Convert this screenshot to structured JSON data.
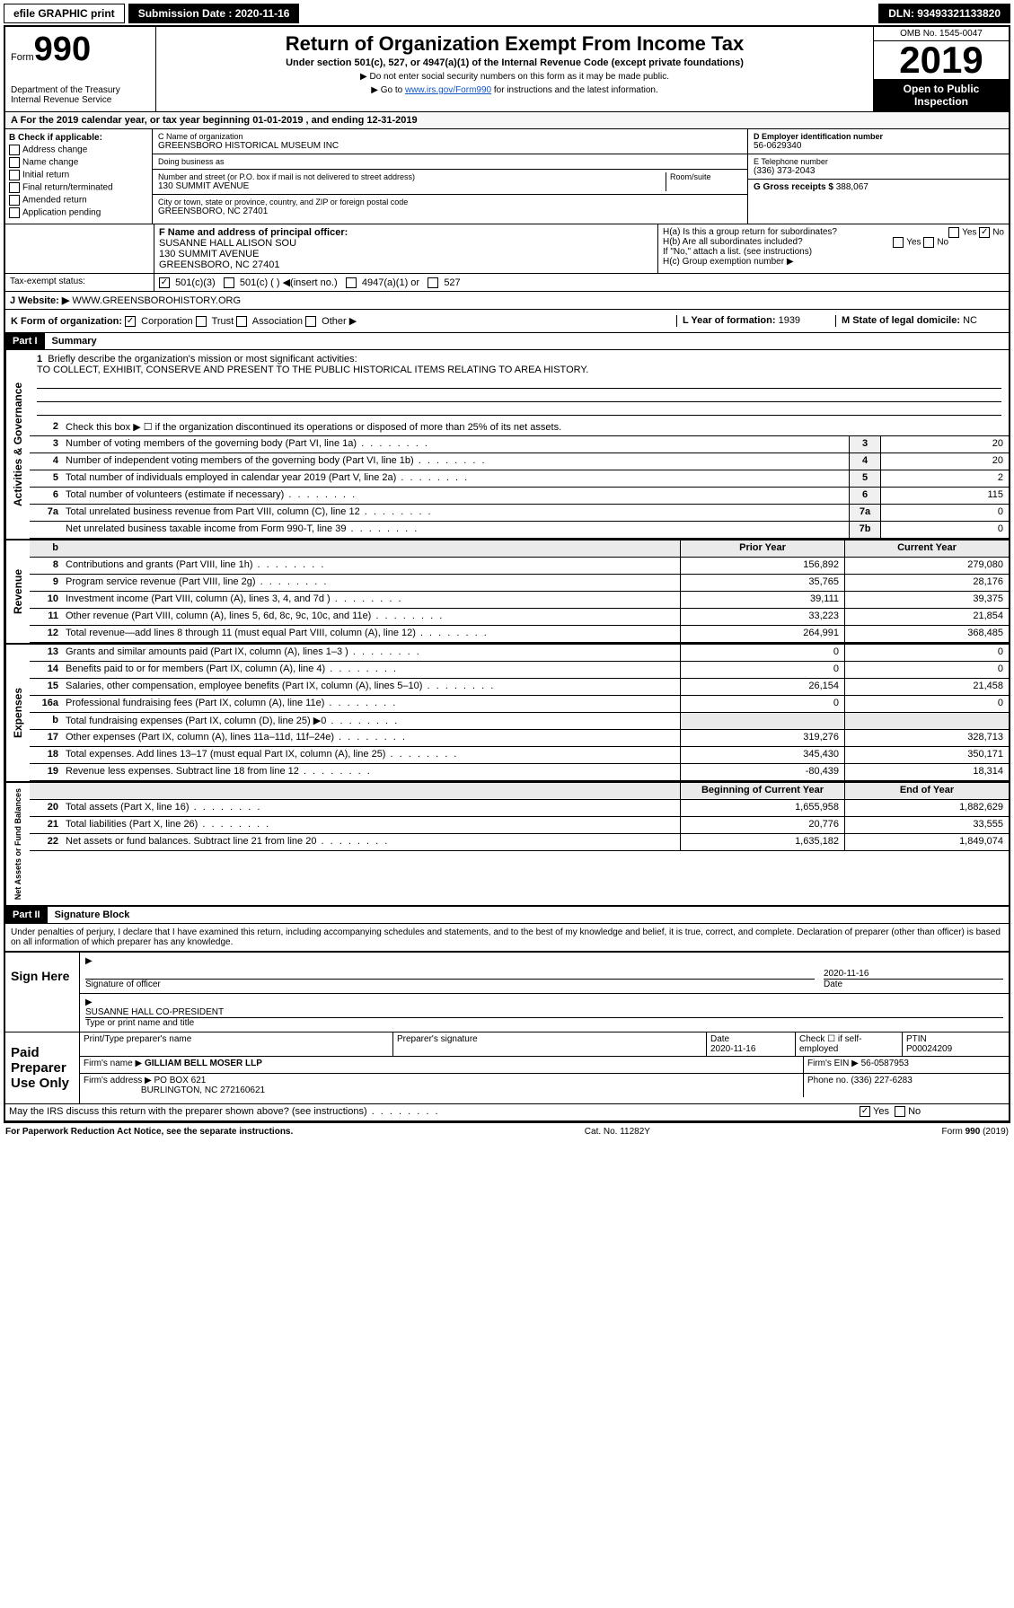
{
  "header": {
    "efile": "efile GRAPHIC print",
    "submission_label": "Submission Date : 2020-11-16",
    "dln": "DLN: 93493321133820"
  },
  "form": {
    "form_label": "Form",
    "form_num": "990",
    "title": "Return of Organization Exempt From Income Tax",
    "subtitle": "Under section 501(c), 527, or 4947(a)(1) of the Internal Revenue Code (except private foundations)",
    "instr1": "▶ Do not enter social security numbers on this form as it may be made public.",
    "instr2_pre": "▶ Go to ",
    "instr2_link": "www.irs.gov/Form990",
    "instr2_post": " for instructions and the latest information.",
    "dept": "Department of the Treasury\nInternal Revenue Service",
    "omb": "OMB No. 1545-0047",
    "year": "2019",
    "open": "Open to Public Inspection"
  },
  "period": "A For the 2019 calendar year, or tax year beginning 01-01-2019    , and ending 12-31-2019",
  "box_b": {
    "label": "B Check if applicable:",
    "opts": [
      "Address change",
      "Name change",
      "Initial return",
      "Final return/terminated",
      "Amended return",
      "Application pending"
    ]
  },
  "box_c": {
    "name_label": "C Name of organization",
    "name": "GREENSBORO HISTORICAL MUSEUM INC",
    "dba_label": "Doing business as",
    "street_label": "Number and street (or P.O. box if mail is not delivered to street address)",
    "room_label": "Room/suite",
    "street": "130 SUMMIT AVENUE",
    "city_label": "City or town, state or province, country, and ZIP or foreign postal code",
    "city": "GREENSBORO, NC  27401"
  },
  "box_d": {
    "ein_label": "D Employer identification number",
    "ein": "56-0629340",
    "phone_label": "E Telephone number",
    "phone": "(336) 373-2043",
    "gross_label": "G Gross receipts $",
    "gross": "388,067"
  },
  "box_f": {
    "label": "F  Name and address of principal officer:",
    "name": "SUSANNE HALL ALISON SOU",
    "addr1": "130 SUMMIT AVENUE",
    "addr2": "GREENSBORO, NC  27401"
  },
  "box_h": {
    "a": "H(a)  Is this a group return for subordinates?",
    "b": "H(b)  Are all subordinates included?",
    "note": "If \"No,\" attach a list. (see instructions)",
    "c": "H(c)  Group exemption number ▶"
  },
  "tax_status": {
    "label": "Tax-exempt status:",
    "o1": "501(c)(3)",
    "o2": "501(c) (   ) ◀(insert no.)",
    "o3": "4947(a)(1) or",
    "o4": "527"
  },
  "website": {
    "label": "J    Website: ▶",
    "val": "WWW.GREENSBOROHISTORY.ORG"
  },
  "k": {
    "label": "K Form of organization:",
    "o1": "Corporation",
    "o2": "Trust",
    "o3": "Association",
    "o4": "Other ▶"
  },
  "l": {
    "label": "L Year of formation:",
    "val": "1939"
  },
  "m": {
    "label": "M State of legal domicile:",
    "val": "NC"
  },
  "part1": {
    "header": "Part I",
    "title": "Summary",
    "q1": "Briefly describe the organization's mission or most significant activities:",
    "mission": "TO COLLECT, EXHIBIT, CONSERVE AND PRESENT TO THE PUBLIC HISTORICAL ITEMS RELATING TO AREA HISTORY.",
    "q2": "Check this box ▶ ☐  if the organization discontinued its operations or disposed of more than 25% of its net assets.",
    "lines_gov": [
      {
        "n": "3",
        "d": "Number of voting members of the governing body (Part VI, line 1a)",
        "box": "3",
        "v": "20"
      },
      {
        "n": "4",
        "d": "Number of independent voting members of the governing body (Part VI, line 1b)",
        "box": "4",
        "v": "20"
      },
      {
        "n": "5",
        "d": "Total number of individuals employed in calendar year 2019 (Part V, line 2a)",
        "box": "5",
        "v": "2"
      },
      {
        "n": "6",
        "d": "Total number of volunteers (estimate if necessary)",
        "box": "6",
        "v": "115"
      },
      {
        "n": "7a",
        "d": "Total unrelated business revenue from Part VIII, column (C), line 12",
        "box": "7a",
        "v": "0"
      },
      {
        "n": "",
        "d": "Net unrelated business taxable income from Form 990-T, line 39",
        "box": "7b",
        "v": "0"
      }
    ],
    "col_prior": "Prior Year",
    "col_current": "Current Year",
    "lines_rev": [
      {
        "n": "8",
        "d": "Contributions and grants (Part VIII, line 1h)",
        "p": "156,892",
        "c": "279,080"
      },
      {
        "n": "9",
        "d": "Program service revenue (Part VIII, line 2g)",
        "p": "35,765",
        "c": "28,176"
      },
      {
        "n": "10",
        "d": "Investment income (Part VIII, column (A), lines 3, 4, and 7d )",
        "p": "39,111",
        "c": "39,375"
      },
      {
        "n": "11",
        "d": "Other revenue (Part VIII, column (A), lines 5, 6d, 8c, 9c, 10c, and 11e)",
        "p": "33,223",
        "c": "21,854"
      },
      {
        "n": "12",
        "d": "Total revenue—add lines 8 through 11 (must equal Part VIII, column (A), line 12)",
        "p": "264,991",
        "c": "368,485"
      }
    ],
    "lines_exp": [
      {
        "n": "13",
        "d": "Grants and similar amounts paid (Part IX, column (A), lines 1–3 )",
        "p": "0",
        "c": "0"
      },
      {
        "n": "14",
        "d": "Benefits paid to or for members (Part IX, column (A), line 4)",
        "p": "0",
        "c": "0"
      },
      {
        "n": "15",
        "d": "Salaries, other compensation, employee benefits (Part IX, column (A), lines 5–10)",
        "p": "26,154",
        "c": "21,458"
      },
      {
        "n": "16a",
        "d": "Professional fundraising fees (Part IX, column (A), line 11e)",
        "p": "0",
        "c": "0"
      },
      {
        "n": "b",
        "d": "Total fundraising expenses (Part IX, column (D), line 25) ▶0",
        "p": "",
        "c": ""
      },
      {
        "n": "17",
        "d": "Other expenses (Part IX, column (A), lines 11a–11d, 11f–24e)",
        "p": "319,276",
        "c": "328,713"
      },
      {
        "n": "18",
        "d": "Total expenses. Add lines 13–17 (must equal Part IX, column (A), line 25)",
        "p": "345,430",
        "c": "350,171"
      },
      {
        "n": "19",
        "d": "Revenue less expenses. Subtract line 18 from line 12",
        "p": "-80,439",
        "c": "18,314"
      }
    ],
    "col_begin": "Beginning of Current Year",
    "col_end": "End of Year",
    "lines_net": [
      {
        "n": "20",
        "d": "Total assets (Part X, line 16)",
        "p": "1,655,958",
        "c": "1,882,629"
      },
      {
        "n": "21",
        "d": "Total liabilities (Part X, line 26)",
        "p": "20,776",
        "c": "33,555"
      },
      {
        "n": "22",
        "d": "Net assets or fund balances. Subtract line 21 from line 20",
        "p": "1,635,182",
        "c": "1,849,074"
      }
    ]
  },
  "side_labels": {
    "gov": "Activities & Governance",
    "rev": "Revenue",
    "exp": "Expenses",
    "net": "Net Assets or Fund Balances"
  },
  "part2": {
    "header": "Part II",
    "title": "Signature Block",
    "decl": "Under penalties of perjury, I declare that I have examined this return, including accompanying schedules and statements, and to the best of my knowledge and belief, it is true, correct, and complete. Declaration of preparer (other than officer) is based on all information of which preparer has any knowledge."
  },
  "sign": {
    "here": "Sign Here",
    "sig_officer": "Signature of officer",
    "date": "2020-11-16",
    "date_label": "Date",
    "name": "SUSANNE HALL CO-PRESIDENT",
    "name_label": "Type or print name and title"
  },
  "paid": {
    "label": "Paid Preparer Use Only",
    "h1": "Print/Type preparer's name",
    "h2": "Preparer's signature",
    "h3": "Date",
    "h4": "Check ☐ if self-employed",
    "h5": "PTIN",
    "date": "2020-11-16",
    "ptin": "P00024209",
    "firm_name_label": "Firm's name    ▶",
    "firm_name": "GILLIAM BELL MOSER LLP",
    "firm_ein_label": "Firm's EIN ▶",
    "firm_ein": "56-0587953",
    "firm_addr_label": "Firm's address ▶",
    "firm_addr": "PO BOX 621",
    "firm_city": "BURLINGTON, NC  272160621",
    "phone_label": "Phone no.",
    "phone": "(336) 227-6283"
  },
  "discuss": "May the IRS discuss this return with the preparer shown above? (see instructions)",
  "footer": {
    "notice": "For Paperwork Reduction Act Notice, see the separate instructions.",
    "cat": "Cat. No. 11282Y",
    "form": "Form 990 (2019)"
  }
}
